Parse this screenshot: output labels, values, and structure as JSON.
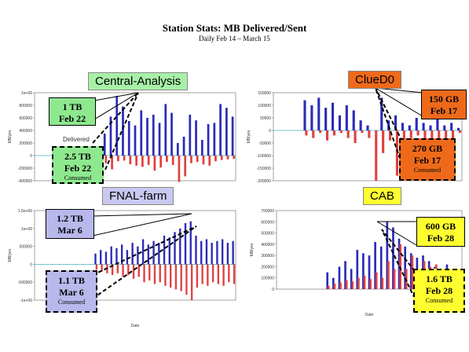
{
  "header": {
    "title": "Station Stats: MB Delivered/Sent",
    "subtitle": "Daily Feb 14 – March 15"
  },
  "colors": {
    "delivered": "#2b2bb8",
    "consumed": "#e04040",
    "zero_line": "#40b0c0",
    "central_label_bg": "#a8f0a8",
    "cluedo_label_bg": "#ee6a1a",
    "fnal_label_bg": "#c8c8f0",
    "cab_label_bg": "#ffff30",
    "central_callout_bg": "#8ee88e",
    "cluedo_callout_bg": "#ee6a1a",
    "fnal_callout_bg": "#b8b8ec",
    "cab_callout_bg": "#ffff30"
  },
  "panels": {
    "central": {
      "label": "Central-Analysis",
      "callout_top": {
        "line1": "1 TB",
        "line2": "Feb 22"
      },
      "callout_bottom": {
        "line1": "2.5 TB",
        "line2": "Feb 22",
        "sub": "Consumed"
      },
      "delivered_text": "Delivered"
    },
    "cluedo": {
      "label": "ClueD0",
      "callout_top": {
        "line1": "150 GB",
        "line2": "Feb 17"
      },
      "callout_bottom": {
        "line1": "270 GB",
        "line2": "Feb 17",
        "sub": "Consumed"
      }
    },
    "fnal": {
      "label": "FNAL-farm",
      "callout_top": {
        "line1": "1.2 TB",
        "line2": "Mar 6"
      },
      "callout_bottom": {
        "line1": "1.1 TB",
        "line2": "Mar 6",
        "sub": "Consumed"
      }
    },
    "cab": {
      "label": "CAB",
      "callout_top": {
        "line1": "600 GB",
        "line2": "Feb 28"
      },
      "callout_bottom": {
        "line1": "1.6 TB",
        "line2": "Feb 28",
        "sub": "Consumed"
      }
    }
  },
  "chart_data": [
    {
      "id": "central",
      "type": "bar",
      "title": "Central-Analysis",
      "xlabel": "",
      "ylabel": "MB/yes",
      "ylim": [
        -400000,
        1000000
      ],
      "yticks": [
        "1e+06",
        "800000",
        "600000",
        "400000",
        "200000",
        "0",
        "-200000",
        "-400000"
      ],
      "series": [
        {
          "name": "",
          "values": [
            0,
            0,
            0,
            0,
            0,
            0,
            0,
            0,
            0,
            0,
            80000,
            350000,
            620000,
            950000,
            780000,
            550000,
            480000,
            720000,
            600000,
            650000,
            520000,
            820000,
            680000,
            200000,
            300000,
            650000,
            560000,
            250000,
            500000,
            520000,
            820000,
            760000,
            620000
          ]
        },
        {
          "name": "",
          "values": [
            0,
            0,
            0,
            0,
            0,
            0,
            0,
            0,
            0,
            0,
            -60000,
            -120000,
            -220000,
            -90000,
            -80000,
            -140000,
            -160000,
            -180000,
            -150000,
            -240000,
            -190000,
            -100000,
            -150000,
            -420000,
            -330000,
            -120000,
            -100000,
            -140000,
            -160000,
            -90000,
            -70000,
            -60000,
            -50000
          ]
        }
      ]
    },
    {
      "id": "cluedo",
      "type": "bar",
      "title": "ClueD0",
      "xlabel": "",
      "ylabel": "MB/yes",
      "ylim": [
        -200000,
        150000
      ],
      "yticks": [
        "150000",
        "100000",
        "50000",
        "0",
        "-50000",
        "-100000",
        "-150000",
        "-200000"
      ],
      "series": [
        {
          "name": "",
          "values": [
            0,
            0,
            0,
            0,
            120000,
            100000,
            130000,
            90000,
            110000,
            60000,
            100000,
            80000,
            40000,
            20000,
            0,
            130000,
            40000,
            60000,
            30000,
            20000,
            50000,
            30000,
            20000,
            60000,
            20000,
            30000,
            10000
          ]
        },
        {
          "name": "",
          "values": [
            0,
            0,
            0,
            0,
            -20000,
            -30000,
            -10000,
            -40000,
            -20000,
            -10000,
            -30000,
            -50000,
            -10000,
            -30000,
            -200000,
            -90000,
            -40000,
            -180000,
            -60000,
            -30000,
            -20000,
            -120000,
            -70000,
            -40000,
            -80000,
            -40000,
            -10000
          ]
        }
      ]
    },
    {
      "id": "fnal",
      "type": "bar",
      "title": "FNAL-farm",
      "xlabel": "Date",
      "ylabel": "MB/yes",
      "ylim": [
        -1000000,
        1500000
      ],
      "yticks": [
        "1.5e+06",
        "1e+06",
        "500000",
        "0",
        "-500000",
        "-1e+06"
      ],
      "series": [
        {
          "name": "",
          "values": [
            0,
            0,
            0,
            0,
            0,
            0,
            0,
            0,
            0,
            0,
            0,
            300000,
            400000,
            350000,
            500000,
            450000,
            550000,
            400000,
            600000,
            500000,
            700000,
            550000,
            650000,
            600000,
            800000,
            750000,
            900000,
            1000000,
            1150000,
            1200000,
            800000,
            650000,
            700000,
            600000,
            650000,
            700000,
            600000,
            650000
          ]
        },
        {
          "name": "",
          "values": [
            0,
            0,
            0,
            0,
            0,
            0,
            0,
            0,
            0,
            0,
            0,
            -150000,
            -200000,
            -250000,
            -300000,
            -250000,
            -350000,
            -300000,
            -400000,
            -350000,
            -500000,
            -450000,
            -550000,
            -500000,
            -600000,
            -650000,
            -700000,
            -750000,
            -850000,
            -1000000,
            -650000,
            -550000,
            -600000,
            -500000,
            -550000,
            -600000,
            -500000,
            -550000
          ]
        }
      ]
    },
    {
      "id": "cab",
      "type": "bar",
      "title": "CAB",
      "xlabel": "Date",
      "ylabel": "MB/yes",
      "ylim": [
        0,
        700000
      ],
      "yticks": [
        "700000",
        "600000",
        "500000",
        "400000",
        "300000",
        "200000",
        "100000",
        "0"
      ],
      "series": [
        {
          "name": "",
          "values": [
            0,
            0,
            0,
            0,
            0,
            0,
            0,
            0,
            150000,
            100000,
            200000,
            250000,
            180000,
            350000,
            320000,
            300000,
            420000,
            380000,
            600000,
            550000,
            450000,
            380000,
            320000,
            280000,
            300000,
            250000,
            200000,
            180000,
            220000,
            150000,
            120000
          ]
        },
        {
          "name": "",
          "values": [
            0,
            0,
            0,
            0,
            0,
            0,
            0,
            0,
            30000,
            50000,
            60000,
            80000,
            70000,
            100000,
            120000,
            90000,
            150000,
            100000,
            250000,
            180000,
            400000,
            180000,
            300000,
            150000,
            250000,
            200000,
            220000,
            120000,
            180000,
            100000,
            60000
          ]
        }
      ]
    }
  ]
}
